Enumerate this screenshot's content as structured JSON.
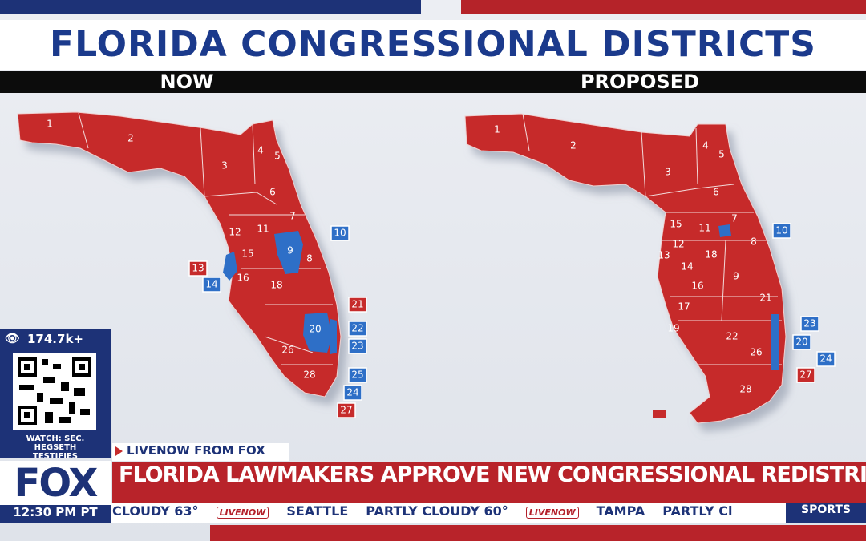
{
  "header": {
    "title": "FLORIDA CONGRESSIONAL DISTRICTS",
    "left_label": "NOW",
    "right_label": "PROPOSED"
  },
  "party_colors": {
    "R": "#c62b2b",
    "D": "#2e6fc7"
  },
  "maps": [
    {
      "districts": [
        {
          "label": "1",
          "party": "R",
          "boxed": false
        },
        {
          "label": "2",
          "party": "R",
          "boxed": false
        },
        {
          "label": "3",
          "party": "R",
          "boxed": false
        },
        {
          "label": "4",
          "party": "R",
          "boxed": false
        },
        {
          "label": "5",
          "party": "R",
          "boxed": false
        },
        {
          "label": "6",
          "party": "R",
          "boxed": false
        },
        {
          "label": "7",
          "party": "R",
          "boxed": false
        },
        {
          "label": "8",
          "party": "R",
          "boxed": false
        },
        {
          "label": "9",
          "party": "D",
          "boxed": false
        },
        {
          "label": "10",
          "party": "D",
          "boxed": true
        },
        {
          "label": "11",
          "party": "R",
          "boxed": false
        },
        {
          "label": "12",
          "party": "R",
          "boxed": false
        },
        {
          "label": "13",
          "party": "R",
          "boxed": true
        },
        {
          "label": "14",
          "party": "D",
          "boxed": true
        },
        {
          "label": "15",
          "party": "R",
          "boxed": false
        },
        {
          "label": "16",
          "party": "R",
          "boxed": false
        },
        {
          "label": "18",
          "party": "R",
          "boxed": false
        },
        {
          "label": "20",
          "party": "D",
          "boxed": false
        },
        {
          "label": "21",
          "party": "R",
          "boxed": true
        },
        {
          "label": "22",
          "party": "D",
          "boxed": true
        },
        {
          "label": "23",
          "party": "D",
          "boxed": true
        },
        {
          "label": "24",
          "party": "D",
          "boxed": true
        },
        {
          "label": "25",
          "party": "D",
          "boxed": true
        },
        {
          "label": "26",
          "party": "R",
          "boxed": false
        },
        {
          "label": "27",
          "party": "R",
          "boxed": true
        },
        {
          "label": "28",
          "party": "R",
          "boxed": false
        }
      ]
    },
    {
      "districts": [
        {
          "label": "1",
          "party": "R",
          "boxed": false
        },
        {
          "label": "2",
          "party": "R",
          "boxed": false
        },
        {
          "label": "3",
          "party": "R",
          "boxed": false
        },
        {
          "label": "4",
          "party": "R",
          "boxed": false
        },
        {
          "label": "5",
          "party": "R",
          "boxed": false
        },
        {
          "label": "6",
          "party": "R",
          "boxed": false
        },
        {
          "label": "7",
          "party": "R",
          "boxed": false
        },
        {
          "label": "8",
          "party": "R",
          "boxed": false
        },
        {
          "label": "9",
          "party": "R",
          "boxed": false
        },
        {
          "label": "10",
          "party": "D",
          "boxed": true
        },
        {
          "label": "11",
          "party": "R",
          "boxed": false
        },
        {
          "label": "12",
          "party": "R",
          "boxed": false
        },
        {
          "label": "13",
          "party": "R",
          "boxed": false
        },
        {
          "label": "14",
          "party": "R",
          "boxed": false
        },
        {
          "label": "15",
          "party": "R",
          "boxed": false
        },
        {
          "label": "16",
          "party": "R",
          "boxed": false
        },
        {
          "label": "17",
          "party": "R",
          "boxed": false
        },
        {
          "label": "18",
          "party": "R",
          "boxed": false
        },
        {
          "label": "19",
          "party": "R",
          "boxed": false
        },
        {
          "label": "20",
          "party": "D",
          "boxed": true
        },
        {
          "label": "21",
          "party": "R",
          "boxed": false
        },
        {
          "label": "22",
          "party": "R",
          "boxed": false
        },
        {
          "label": "23",
          "party": "D",
          "boxed": true
        },
        {
          "label": "24",
          "party": "D",
          "boxed": true
        },
        {
          "label": "26",
          "party": "R",
          "boxed": false
        },
        {
          "label": "27",
          "party": "R",
          "boxed": true
        },
        {
          "label": "28",
          "party": "R",
          "boxed": false
        }
      ]
    }
  ],
  "overlay": {
    "views": "174.7k+",
    "qr_caption": "WATCH: SEC. HEGSETH TESTIFIES"
  },
  "lower_third": {
    "tag": "LIVENOW FROM FOX",
    "logo": "FOX",
    "headline": "FLORIDA LAWMAKERS APPROVE NEW CONGRESSIONAL REDISTRICTING MAP",
    "time": "12:30 PM PT"
  },
  "ticker": {
    "items": [
      "CLOUDY 63°",
      "LIVENOW",
      "SEATTLE",
      "PARTLY CLOUDY 60°",
      "LIVENOW",
      "TAMPA",
      "PARTLY Cl"
    ],
    "section": "SPORTS"
  }
}
